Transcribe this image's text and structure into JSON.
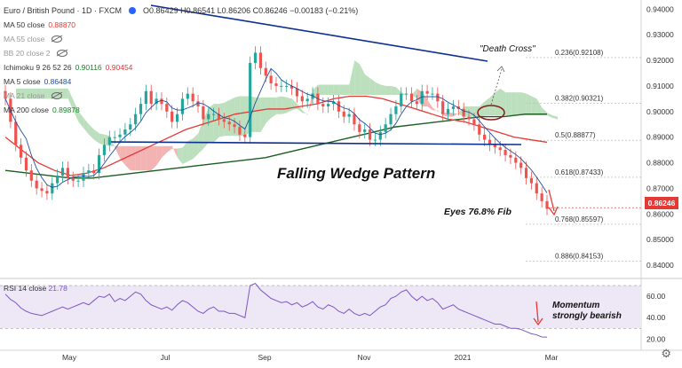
{
  "header": {
    "symbol_title": "Euro / British Pound · 1D · FXCM",
    "ohlc": "O0.86429 H0.86541 L0.86206 C0.86246 −0.00183 (−0.21%)"
  },
  "indicators": [
    {
      "label": "MA 50 close",
      "value": "0.88870",
      "color": "#e53935",
      "hidden": false
    },
    {
      "label": "MA 55 close",
      "value": "",
      "color": "#999999",
      "hidden": true
    },
    {
      "label": "BB 20 close 2",
      "value": "",
      "color": "#999999",
      "hidden": true
    },
    {
      "label": "Ichimoku 9 26 52 26",
      "value": "0.90116",
      "value2": "0.90454",
      "color": "#1b7f2a",
      "color2": "#e53935",
      "hidden": false
    },
    {
      "label": "MA 5 close",
      "value": "0.86484",
      "color": "#1f4e9e",
      "hidden": false
    },
    {
      "label": "MA 21 close",
      "value": "",
      "color": "#999999",
      "hidden": true
    },
    {
      "label": "MA 200 close",
      "value": "0.89878",
      "color": "#1b7f2a",
      "hidden": false
    }
  ],
  "rsi": {
    "label": "RSI 14 close",
    "value": "21.78"
  },
  "annotations": {
    "death_cross": "\"Death Cross\"",
    "pattern": "Falling Wedge Pattern",
    "eyes": "Eyes 76.8% Fib",
    "momentum_line1": "Momentum",
    "momentum_line2": "strongly bearish"
  },
  "last_price": "0.86246",
  "chart_data": {
    "type": "candlestick",
    "x_axis_labels": [
      "May",
      "Jul",
      "Sep",
      "Nov",
      "2021",
      "Mar"
    ],
    "y_axis_labels": [
      "0.94000",
      "0.93000",
      "0.92000",
      "0.91000",
      "0.90000",
      "0.89000",
      "0.88000",
      "0.87000",
      "0.86000",
      "0.85000",
      "0.84000"
    ],
    "ylim": [
      0.8355,
      0.9415
    ],
    "rsi_axis_labels": [
      "60.00",
      "40.00",
      "20.00"
    ],
    "rsi_ylim": [
      17,
      75
    ],
    "rsi_band": [
      30,
      70
    ],
    "fib_levels": [
      {
        "label": "0.236(0.92108)",
        "value": 0.92108
      },
      {
        "label": "0.382(0.90321)",
        "value": 0.90321
      },
      {
        "label": "0.5(0.88877)",
        "value": 0.88877
      },
      {
        "label": "0.618(0.87433)",
        "value": 0.87433
      },
      {
        "label": "0.768(0.85597)",
        "value": 0.85597
      },
      {
        "label": "0.886(0.84153)",
        "value": 0.84153
      }
    ],
    "close_series": [
      0.905,
      0.896,
      0.887,
      0.882,
      0.877,
      0.873,
      0.87,
      0.869,
      0.868,
      0.872,
      0.875,
      0.878,
      0.874,
      0.873,
      0.873,
      0.876,
      0.877,
      0.876,
      0.883,
      0.887,
      0.89,
      0.89,
      0.891,
      0.893,
      0.895,
      0.899,
      0.903,
      0.908,
      0.903,
      0.905,
      0.903,
      0.9,
      0.896,
      0.899,
      0.905,
      0.907,
      0.904,
      0.902,
      0.897,
      0.899,
      0.899,
      0.897,
      0.896,
      0.895,
      0.894,
      0.891,
      0.89,
      0.919,
      0.923,
      0.917,
      0.914,
      0.911,
      0.91,
      0.91,
      0.91,
      0.909,
      0.906,
      0.904,
      0.905,
      0.907,
      0.903,
      0.902,
      0.903,
      0.904,
      0.9,
      0.898,
      0.899,
      0.895,
      0.892,
      0.893,
      0.889,
      0.889,
      0.892,
      0.895,
      0.899,
      0.902,
      0.907,
      0.907,
      0.904,
      0.903,
      0.908,
      0.907,
      0.907,
      0.904,
      0.899,
      0.901,
      0.902,
      0.901,
      0.898,
      0.897,
      0.895,
      0.891,
      0.889,
      0.887,
      0.886,
      0.885,
      0.883,
      0.882,
      0.88,
      0.878,
      0.874,
      0.872,
      0.868,
      0.865,
      0.862
    ],
    "rsi_series": [
      62,
      57,
      54,
      49,
      46,
      44,
      43,
      42,
      44,
      46,
      48,
      50,
      48,
      50,
      52,
      54,
      52,
      56,
      60,
      59,
      62,
      55,
      58,
      56,
      60,
      64,
      62,
      56,
      52,
      50,
      48,
      50,
      47,
      52,
      56,
      54,
      50,
      46,
      44,
      48,
      50,
      46,
      46,
      44,
      44,
      42,
      40,
      70,
      72,
      66,
      62,
      58,
      56,
      54,
      55,
      52,
      54,
      50,
      52,
      55,
      50,
      48,
      52,
      50,
      46,
      44,
      48,
      44,
      42,
      44,
      42,
      46,
      50,
      52,
      58,
      60,
      64,
      66,
      60,
      56,
      60,
      56,
      58,
      54,
      48,
      50,
      52,
      48,
      46,
      44,
      42,
      40,
      38,
      36,
      34,
      34,
      32,
      30,
      30,
      29,
      27,
      25,
      24,
      22,
      21.78
    ],
    "ma50": [
      0.89,
      0.885,
      0.88,
      0.877,
      0.875,
      0.876,
      0.878,
      0.881,
      0.884,
      0.887,
      0.89,
      0.893,
      0.895,
      0.897,
      0.899,
      0.9,
      0.901,
      0.901,
      0.902,
      0.903,
      0.905,
      0.906,
      0.906,
      0.905,
      0.903,
      0.901,
      0.899,
      0.897,
      0.896,
      0.894,
      0.892,
      0.89,
      0.889,
      0.888
    ],
    "ma200": [
      0.877,
      0.876,
      0.875,
      0.874,
      0.874,
      0.875,
      0.876,
      0.877,
      0.878,
      0.879,
      0.88,
      0.881,
      0.882,
      0.884,
      0.886,
      0.888,
      0.89,
      0.892,
      0.894,
      0.895,
      0.896,
      0.897,
      0.898,
      0.898,
      0.899,
      0.899
    ]
  }
}
